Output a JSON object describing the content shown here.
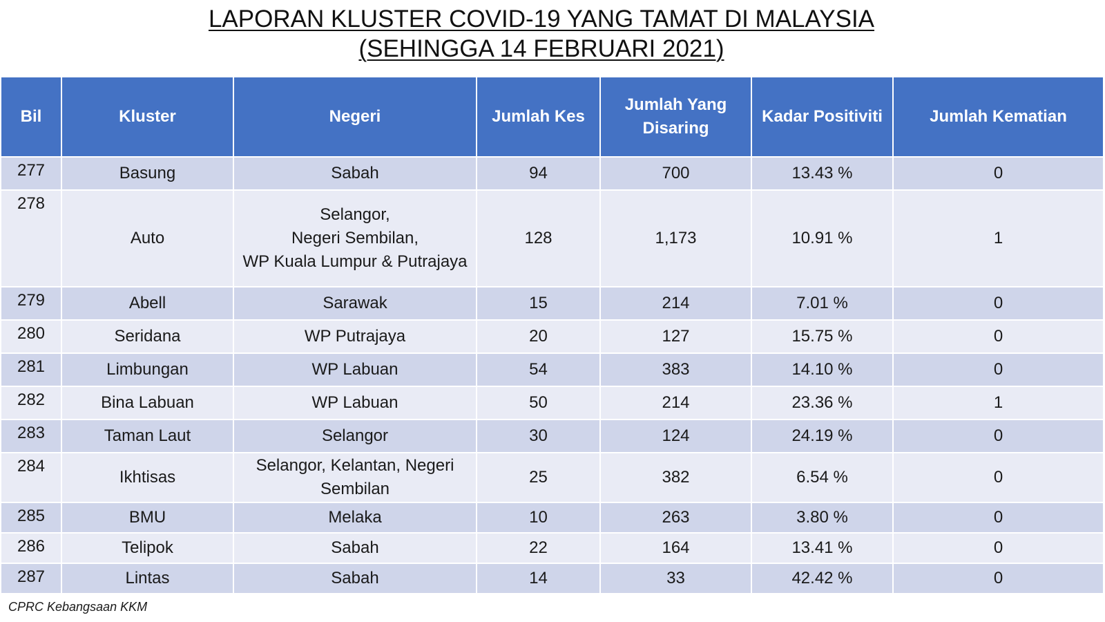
{
  "title": {
    "line1": "LAPORAN KLUSTER COVID-19 YANG TAMAT DI MALAYSIA",
    "line2": "(SEHINGGA 14 FEBRUARI 2021)"
  },
  "columns": [
    "Bil",
    "Kluster",
    "Negeri",
    "Jumlah Kes",
    "Jumlah Yang\nDisaring",
    "Kadar Positiviti",
    "Jumlah Kematian"
  ],
  "rows": [
    {
      "bil": "277",
      "kluster": "Basung",
      "negeri": "Sabah",
      "kes": "94",
      "disaring": "700",
      "positiviti": "13.43 %",
      "kematian": "0"
    },
    {
      "bil": "278",
      "kluster": "Auto",
      "negeri": "Selangor,\nNegeri Sembilan,\nWP Kuala Lumpur & Putrajaya",
      "kes": "128",
      "disaring": "1,173",
      "positiviti": "10.91 %",
      "kematian": "1"
    },
    {
      "bil": "279",
      "kluster": "Abell",
      "negeri": "Sarawak",
      "kes": "15",
      "disaring": "214",
      "positiviti": "7.01 %",
      "kematian": "0"
    },
    {
      "bil": "280",
      "kluster": "Seridana",
      "negeri": "WP Putrajaya",
      "kes": "20",
      "disaring": "127",
      "positiviti": "15.75 %",
      "kematian": "0"
    },
    {
      "bil": "281",
      "kluster": "Limbungan",
      "negeri": "WP Labuan",
      "kes": "54",
      "disaring": "383",
      "positiviti": "14.10 %",
      "kematian": "0"
    },
    {
      "bil": "282",
      "kluster": "Bina Labuan",
      "negeri": "WP Labuan",
      "kes": "50",
      "disaring": "214",
      "positiviti": "23.36 %",
      "kematian": "1"
    },
    {
      "bil": "283",
      "kluster": "Taman Laut",
      "negeri": "Selangor",
      "kes": "30",
      "disaring": "124",
      "positiviti": "24.19 %",
      "kematian": "0"
    },
    {
      "bil": "284",
      "kluster": "Ikhtisas",
      "negeri": "Selangor, Kelantan, Negeri\nSembilan",
      "kes": "25",
      "disaring": "382",
      "positiviti": "6.54 %",
      "kematian": "0"
    },
    {
      "bil": "285",
      "kluster": "BMU",
      "negeri": "Melaka",
      "kes": "10",
      "disaring": "263",
      "positiviti": "3.80 %",
      "kematian": "0"
    },
    {
      "bil": "286",
      "kluster": "Telipok",
      "negeri": "Sabah",
      "kes": "22",
      "disaring": "164",
      "positiviti": "13.41 %",
      "kematian": "0"
    },
    {
      "bil": "287",
      "kluster": "Lintas",
      "negeri": "Sabah",
      "kes": "14",
      "disaring": "33",
      "positiviti": "42.42 %",
      "kematian": "0"
    }
  ],
  "source": "CPRC Kebangsaan KKM",
  "colors": {
    "header_bg": "#4472c4",
    "row_dark": "#cfd5ea",
    "row_light": "#e9ebf5"
  }
}
